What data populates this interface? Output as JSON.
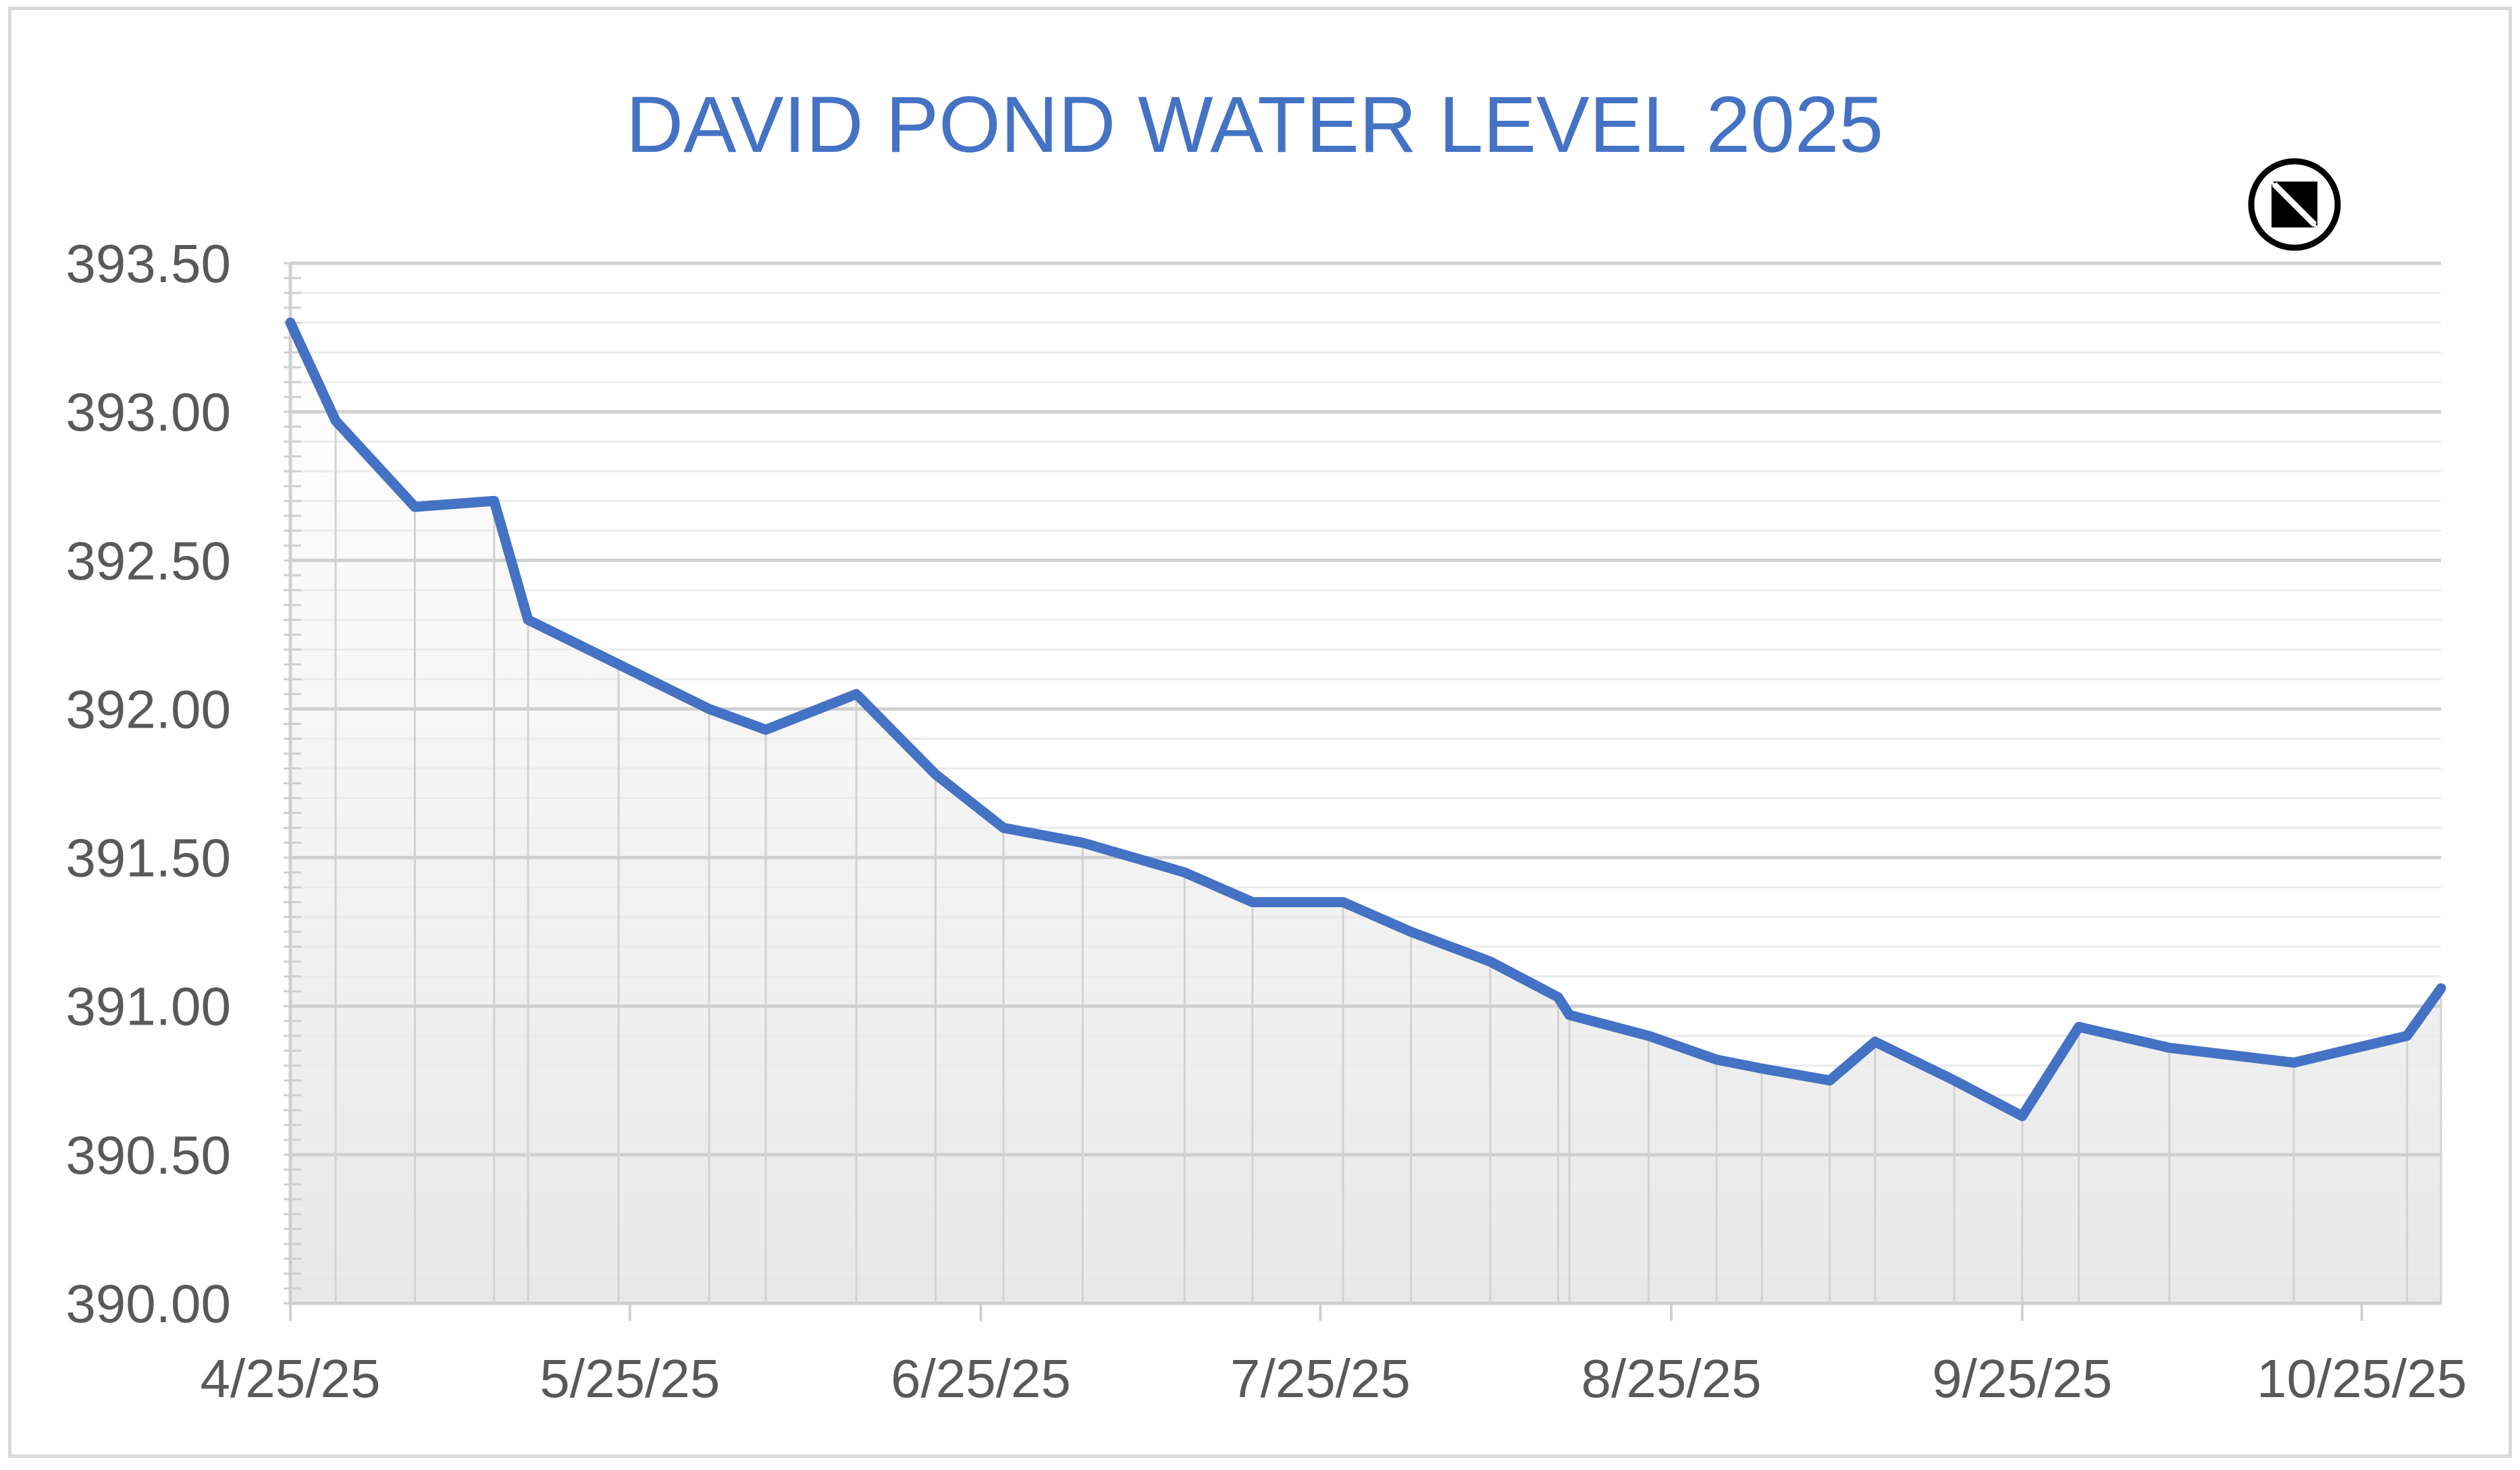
{
  "chart_data": {
    "type": "area",
    "title": "DAVID POND WATER LEVEL 2025",
    "xlabel": "",
    "ylabel": "",
    "x_tick_labels": [
      "4/25/25",
      "5/25/25",
      "6/25/25",
      "7/25/25",
      "8/25/25",
      "9/25/25",
      "10/25/25"
    ],
    "x_tick_dates": [
      "2025-04-25",
      "2025-05-25",
      "2025-06-25",
      "2025-07-25",
      "2025-08-25",
      "2025-09-25",
      "2025-10-25"
    ],
    "y_tick_labels": [
      "390.00",
      "390.50",
      "391.00",
      "391.50",
      "392.00",
      "392.50",
      "393.00",
      "393.50"
    ],
    "xlim": [
      "2025-04-25",
      "2025-11-01"
    ],
    "ylim": [
      390.0,
      393.5
    ],
    "grid": true,
    "legend": "none",
    "line_color": "#4472c4",
    "series": [
      {
        "x": [
          "2025-04-25",
          "2025-04-29",
          "2025-05-06",
          "2025-05-13",
          "2025-05-16",
          "2025-05-24",
          "2025-06-01",
          "2025-06-06",
          "2025-06-14",
          "2025-06-21",
          "2025-06-27",
          "2025-07-04",
          "2025-07-13",
          "2025-07-19",
          "2025-07-27",
          "2025-08-02",
          "2025-08-09",
          "2025-08-15",
          "2025-08-16",
          "2025-08-23",
          "2025-08-29",
          "2025-09-02",
          "2025-09-08",
          "2025-09-12",
          "2025-09-19",
          "2025-09-25",
          "2025-09-30",
          "2025-10-08",
          "2025-10-19",
          "2025-10-29",
          "2025-11-01"
        ],
        "values": [
          393.3,
          392.97,
          392.68,
          392.7,
          392.3,
          392.15,
          392.0,
          391.93,
          392.05,
          391.78,
          391.6,
          391.55,
          391.45,
          391.35,
          391.35,
          391.25,
          391.15,
          391.03,
          390.97,
          390.9,
          390.82,
          390.79,
          390.75,
          390.88,
          390.75,
          390.63,
          390.93,
          390.86,
          390.81,
          390.9,
          391.06
        ]
      }
    ]
  }
}
